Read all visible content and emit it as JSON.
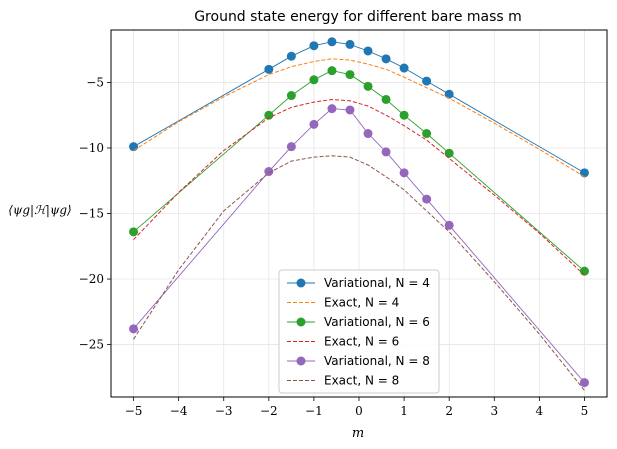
{
  "chart_data": {
    "type": "line",
    "title": "Ground state energy for different bare mass m",
    "xlabel": "m",
    "ylabel": "⟨ψg|ℋ|ψg⟩",
    "xlim": [
      -5.5,
      5.5
    ],
    "ylim": [
      -29,
      -1
    ],
    "x_ticks": [
      -5,
      -4,
      -3,
      -2,
      -1,
      0,
      1,
      2,
      3,
      4,
      5
    ],
    "y_ticks": [
      -25,
      -20,
      -15,
      -10,
      -5
    ],
    "grid": true,
    "legend_position": "lower-center",
    "series": [
      {
        "name": "Variational, N = 4",
        "style": "solid-marker",
        "color": "#1f77b4",
        "x": [
          -5,
          -2,
          -1.5,
          -1,
          -0.6,
          -0.2,
          0.2,
          0.6,
          1,
          1.5,
          2,
          5
        ],
        "y": [
          -9.9,
          -4.0,
          -3.0,
          -2.2,
          -1.9,
          -2.1,
          -2.6,
          -3.2,
          -3.9,
          -4.9,
          -5.9,
          -11.9
        ]
      },
      {
        "name": "Exact, N = 4",
        "style": "dashed",
        "color": "#ff7f0e",
        "x": [
          -5,
          -4,
          -3,
          -2,
          -1.5,
          -1,
          -0.6,
          -0.2,
          0.2,
          0.6,
          1,
          1.5,
          2,
          3,
          4,
          5
        ],
        "y": [
          -10.2,
          -8.0,
          -6.1,
          -4.4,
          -3.8,
          -3.4,
          -3.2,
          -3.3,
          -3.6,
          -4.0,
          -4.6,
          -5.4,
          -6.2,
          -8.1,
          -10.1,
          -12.2
        ]
      },
      {
        "name": "Variational, N = 6",
        "style": "solid-marker",
        "color": "#2ca02c",
        "x": [
          -5,
          -2,
          -1.5,
          -1,
          -0.6,
          -0.2,
          0.2,
          0.6,
          1,
          1.5,
          2,
          5
        ],
        "y": [
          -16.4,
          -7.5,
          -6.0,
          -4.8,
          -4.1,
          -4.4,
          -5.3,
          -6.3,
          -7.5,
          -8.9,
          -10.4,
          -19.4
        ]
      },
      {
        "name": "Exact, N = 6",
        "style": "dashed",
        "color": "#d62728",
        "x": [
          -5,
          -4,
          -3,
          -2,
          -1.5,
          -1,
          -0.6,
          -0.2,
          0.2,
          0.6,
          1,
          1.5,
          2,
          3,
          4,
          5
        ],
        "y": [
          -17.0,
          -13.4,
          -10.2,
          -7.7,
          -6.9,
          -6.5,
          -6.3,
          -6.4,
          -6.8,
          -7.5,
          -8.3,
          -9.4,
          -10.8,
          -13.6,
          -16.5,
          -19.7
        ]
      },
      {
        "name": "Variational, N = 8",
        "style": "solid-marker",
        "color": "#9467bd",
        "x": [
          -5,
          -2,
          -1.5,
          -1,
          -0.6,
          -0.2,
          0.2,
          0.6,
          1,
          1.5,
          2,
          5
        ],
        "y": [
          -23.8,
          -11.8,
          -9.9,
          -8.2,
          -7.0,
          -7.1,
          -8.9,
          -10.3,
          -11.9,
          -13.9,
          -15.9,
          -27.9
        ]
      },
      {
        "name": "Exact, N = 8",
        "style": "dashed",
        "color": "#8c564b",
        "x": [
          -5,
          -4,
          -3,
          -2,
          -1.5,
          -1,
          -0.6,
          -0.2,
          0.2,
          0.6,
          1,
          1.5,
          2,
          3,
          4,
          5
        ],
        "y": [
          -24.6,
          -19.3,
          -14.8,
          -11.9,
          -11.0,
          -10.7,
          -10.6,
          -10.7,
          -11.3,
          -12.2,
          -13.2,
          -14.8,
          -16.4,
          -20.2,
          -24.2,
          -28.5
        ]
      }
    ]
  }
}
